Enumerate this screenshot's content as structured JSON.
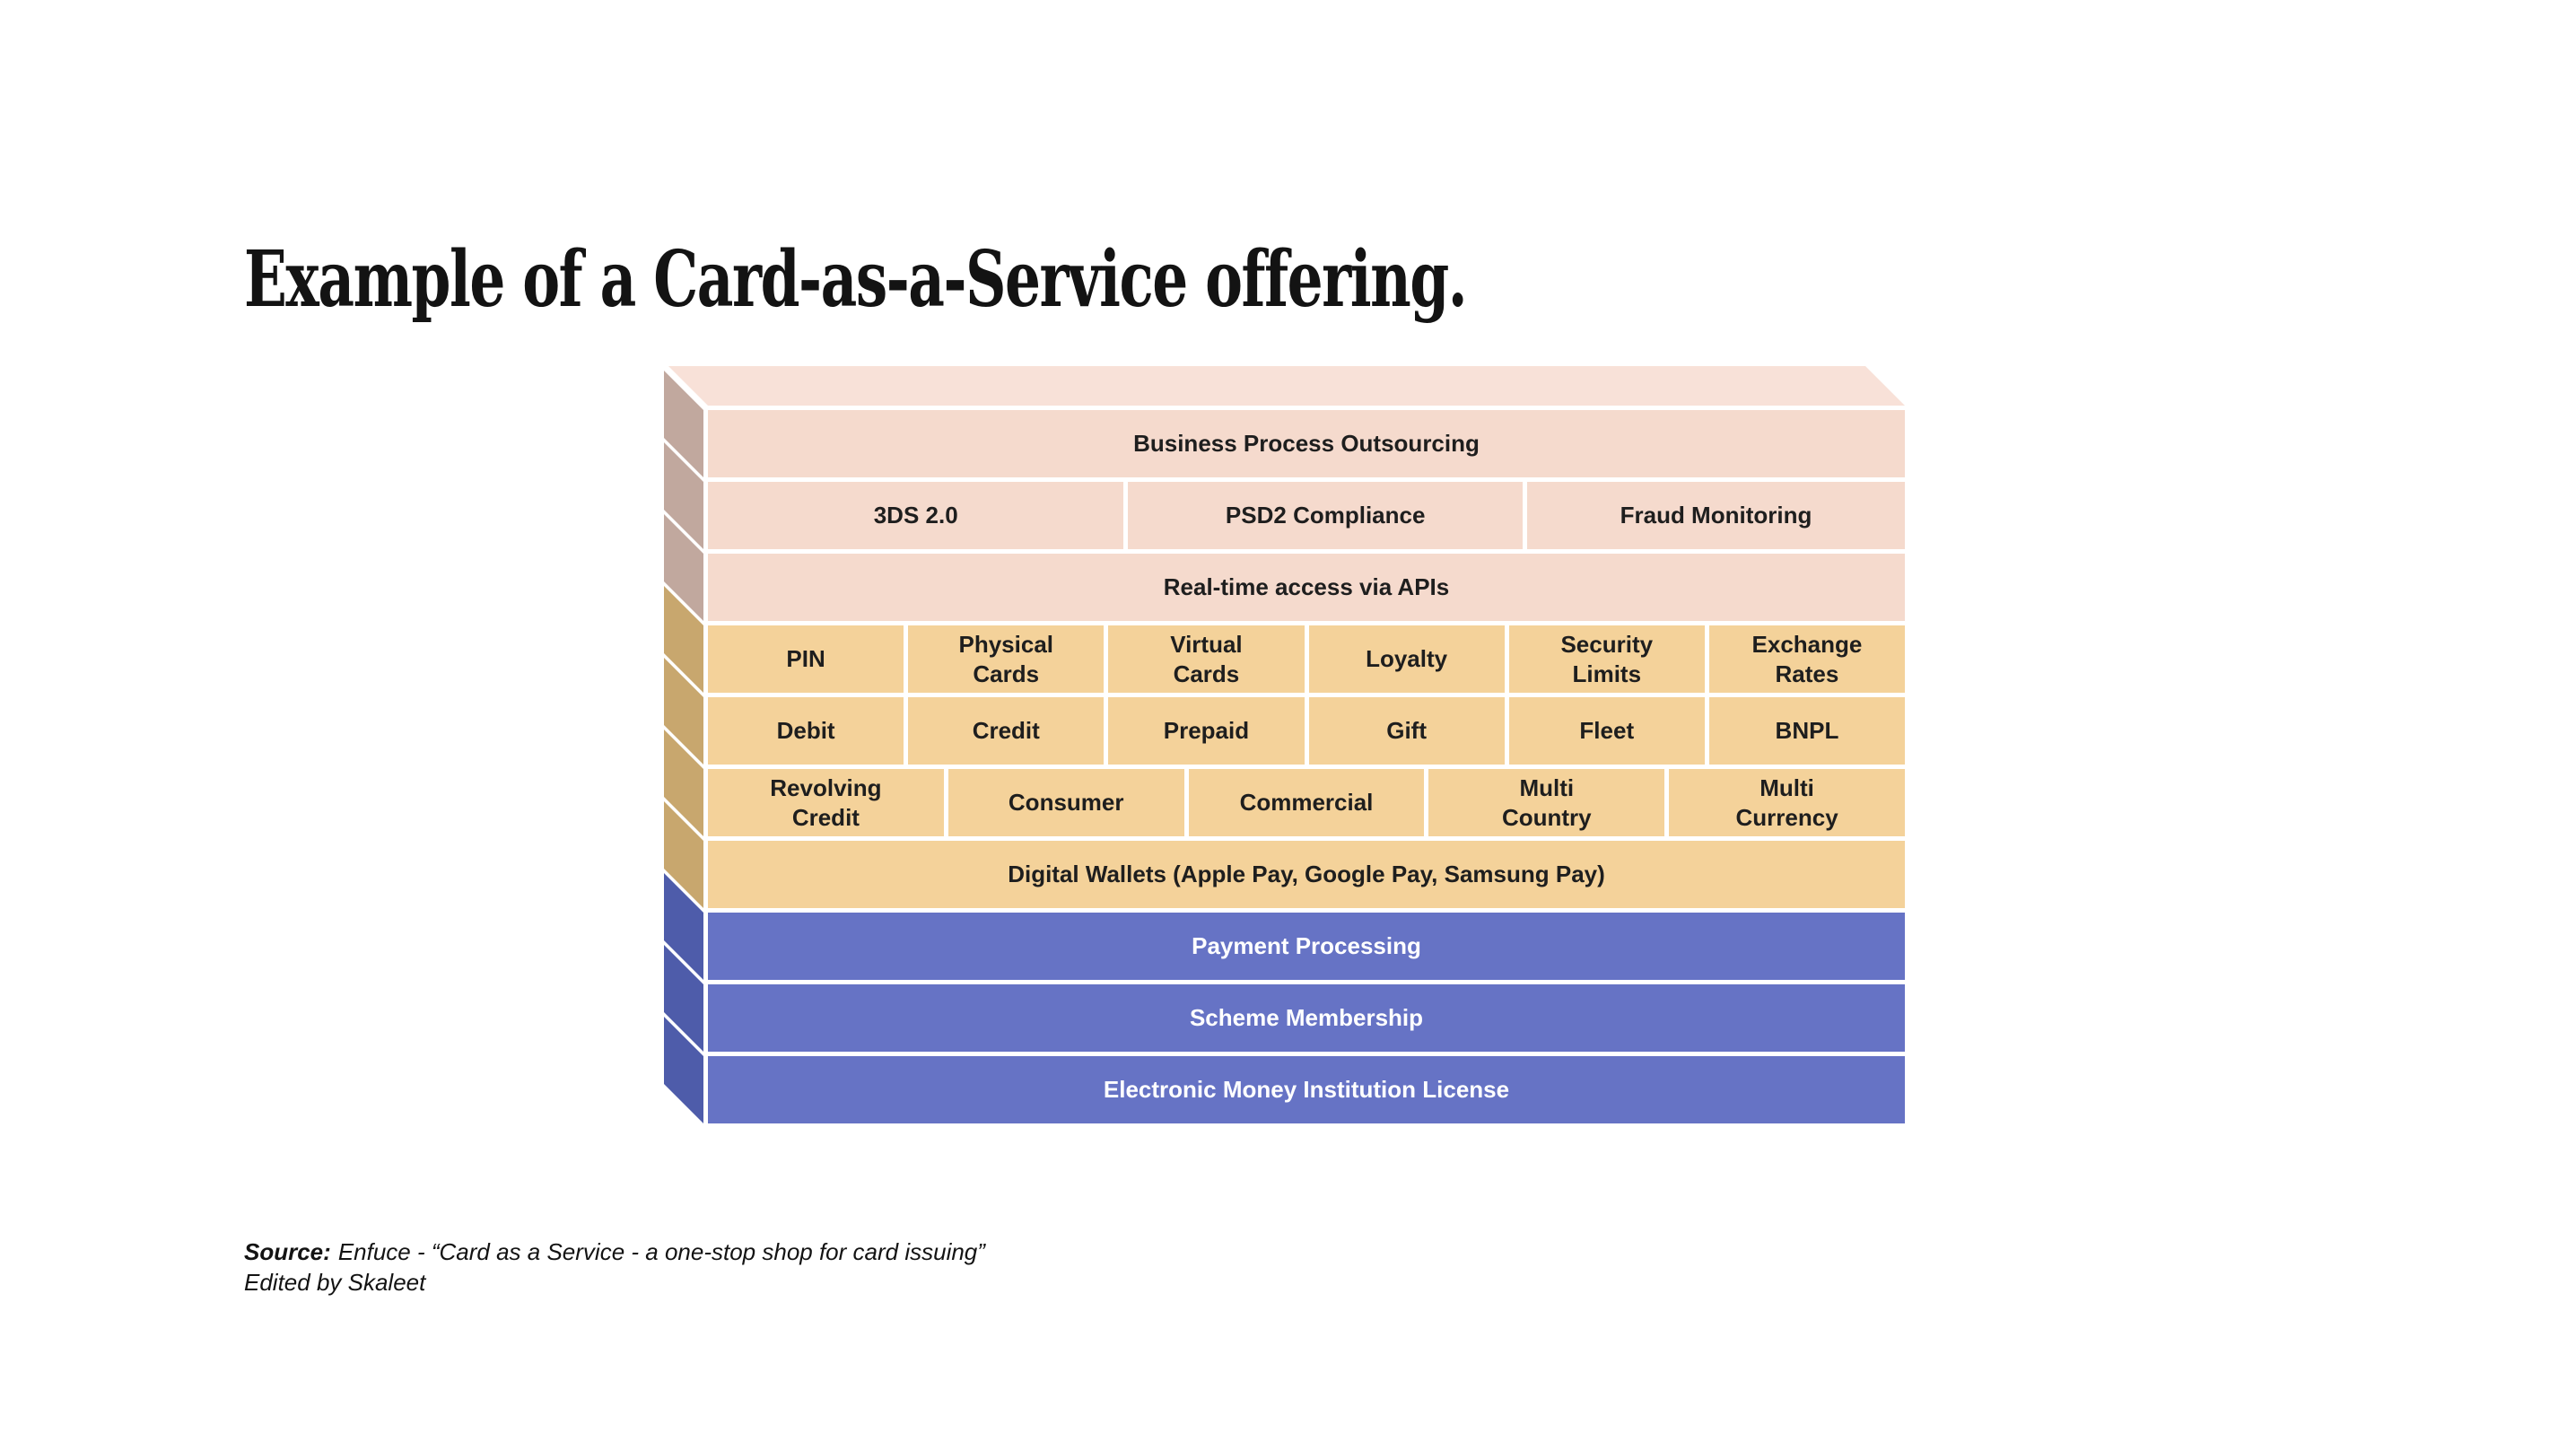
{
  "page": {
    "title": "Example of a Card-as-a-Service offering."
  },
  "colors": {
    "pink_front": "#f5dacd",
    "pink_side": "#c1a89e",
    "top_face": "#f8e1d8",
    "orange_front": "#f4d29a",
    "orange_side": "#c8a76e",
    "blue_front": "#6673c5",
    "blue_side": "#4e5caa",
    "dark_text": "#1e1e1e",
    "light_text": "#ffffff",
    "gap": "#ffffff"
  },
  "stack": {
    "rows": [
      {
        "group": "pink",
        "cells": [
          "Business Process Outsourcing"
        ]
      },
      {
        "group": "pink",
        "cells": [
          "3DS 2.0",
          "PSD2 Compliance",
          "Fraud Monitoring"
        ]
      },
      {
        "group": "pink",
        "cells": [
          "Real-time access via APIs"
        ]
      },
      {
        "group": "orange",
        "cells": [
          "PIN",
          "Physical\nCards",
          "Virtual\nCards",
          "Loyalty",
          "Security\nLimits",
          "Exchange\nRates"
        ]
      },
      {
        "group": "orange",
        "cells": [
          "Debit",
          "Credit",
          "Prepaid",
          "Gift",
          "Fleet",
          "BNPL"
        ]
      },
      {
        "group": "orange",
        "cells": [
          "Revolving\nCredit",
          "Consumer",
          "Commercial",
          "Multi\nCountry",
          "Multi\nCurrency"
        ]
      },
      {
        "group": "orange",
        "cells": [
          "Digital Wallets (Apple Pay, Google Pay, Samsung Pay)"
        ]
      },
      {
        "group": "blue",
        "cells": [
          "Payment Processing"
        ]
      },
      {
        "group": "blue",
        "cells": [
          "Scheme Membership"
        ]
      },
      {
        "group": "blue",
        "cells": [
          "Electronic Money Institution License"
        ]
      }
    ]
  },
  "source": {
    "label": "Source:",
    "text": "Enfuce - “Card as a Service - a one-stop shop for card issuing”",
    "edited_by": "Edited by Skaleet"
  }
}
